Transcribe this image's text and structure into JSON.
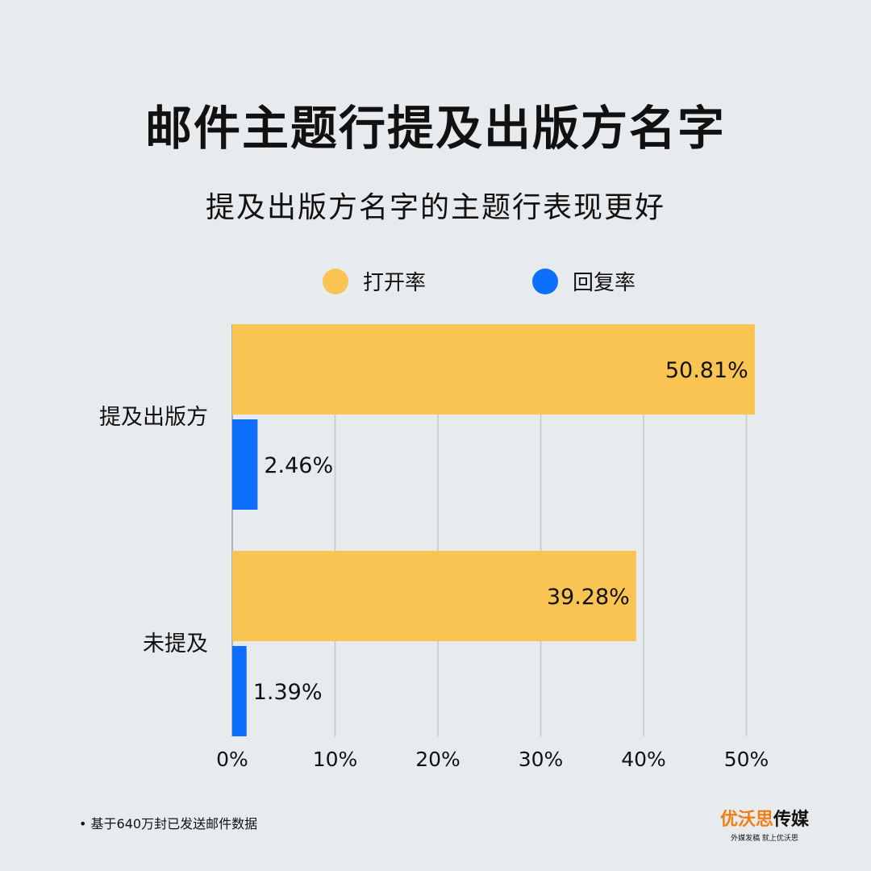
{
  "title": "邮件主题行提及出版方名字",
  "subtitle": "提及出版方名字的主题行表现更好",
  "footnote": "• 基于640万封已发送邮件数据",
  "logo": {
    "orange": "优沃思",
    "dark": "传媒",
    "tagline": "外媒发稿 就上优沃思"
  },
  "colors": {
    "background": "#e8ebee",
    "open_rate": "#f9c452",
    "reply_rate": "#0f6ffd"
  },
  "chart_data": {
    "type": "bar",
    "orientation": "horizontal",
    "categories": [
      "提及出版方",
      "未提及"
    ],
    "series": [
      {
        "name": "打开率",
        "values": [
          50.81,
          39.28
        ],
        "labels": [
          "50.81%",
          "39.28%"
        ]
      },
      {
        "name": "回复率",
        "values": [
          2.46,
          1.39
        ],
        "labels": [
          "2.46%",
          "1.39%"
        ]
      }
    ],
    "xlim": [
      0,
      50
    ],
    "xticks": [
      "0%",
      "10%",
      "20%",
      "30%",
      "40%",
      "50%"
    ],
    "grid": true,
    "legend": "top-center"
  }
}
